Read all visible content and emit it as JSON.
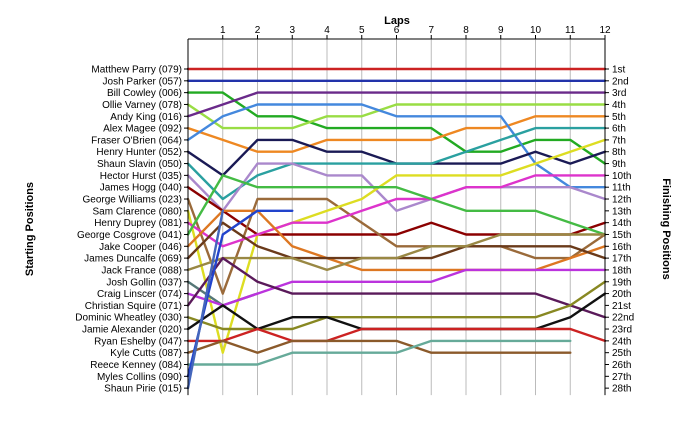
{
  "chart_data": {
    "type": "line",
    "x_title": "Laps",
    "left_title": "Starting Positions",
    "right_title": "Finishing Positions",
    "laps": [
      1,
      2,
      3,
      4,
      5,
      6,
      7,
      8,
      9,
      10,
      11,
      12
    ],
    "start_labels": [
      "Matthew Parry (079)",
      "Josh Parker (057)",
      "Bill Cowley (006)",
      "Ollie Varney (078)",
      "Andy King (016)",
      "Alex Magee (092)",
      "Fraser O'Brien (064)",
      "Henry Hunter (052)",
      "Shaun Slavin (050)",
      "Hector Hurst (035)",
      "James Hogg (040)",
      "George Williams (023)",
      "Sam Clarence (080)",
      "Henry Duprey (081)",
      "George Cosgrove (041)",
      "Jake Cooper (046)",
      "James Duncalfe (069)",
      "Jack France (088)",
      "Josh Gollin (037)",
      "Craig Linscer (074)",
      "Christian Squire (071)",
      "Dominic Wheatley (030)",
      "Jamie Alexander (020)",
      "Ryan Eshelby (047)",
      "Kyle Cutts (087)",
      "Reece Kenney (084)",
      "Myles Collins (090)",
      "Shaun Pirie (015)"
    ],
    "finish_labels": [
      "1st",
      "2nd",
      "3rd",
      "4th",
      "5th",
      "6th",
      "7th",
      "8th",
      "9th",
      "10th",
      "11th",
      "12th",
      "13th",
      "14th",
      "15th",
      "16th",
      "17th",
      "18th",
      "19th",
      "20th",
      "21st",
      "22nd",
      "23rd",
      "24th",
      "25th",
      "26th",
      "27th",
      "28th"
    ],
    "series": [
      {
        "color": "#cc2222",
        "positions": [
          1,
          1,
          1,
          1,
          1,
          1,
          1,
          1,
          1,
          1,
          1,
          1,
          1
        ]
      },
      {
        "color": "#2233aa",
        "positions": [
          2,
          2,
          2,
          2,
          2,
          2,
          2,
          2,
          2,
          2,
          2,
          2,
          2
        ]
      },
      {
        "color": "#22aa22",
        "positions": [
          3,
          3,
          5,
          5,
          6,
          6,
          6,
          6,
          8,
          8,
          7,
          7,
          9
        ]
      },
      {
        "color": "#99dd44",
        "positions": [
          4,
          6,
          6,
          6,
          5,
          5,
          4,
          4,
          4,
          4,
          4,
          4,
          4
        ]
      },
      {
        "color": "#6a2a8a",
        "positions": [
          5,
          4,
          3,
          3,
          3,
          3,
          3,
          3,
          3,
          3,
          3,
          3,
          3
        ]
      },
      {
        "color": "#ee8822",
        "positions": [
          6,
          7,
          8,
          8,
          7,
          7,
          7,
          7,
          6,
          6,
          5,
          5,
          5
        ]
      },
      {
        "color": "#4488dd",
        "positions": [
          7,
          5,
          4,
          4,
          4,
          4,
          5,
          5,
          5,
          5,
          9,
          11,
          11
        ]
      },
      {
        "color": "#1a1a55",
        "positions": [
          8,
          10,
          7,
          7,
          8,
          8,
          9,
          9,
          9,
          9,
          8,
          9,
          8
        ]
      },
      {
        "color": "#2aa0a0",
        "positions": [
          9,
          12,
          10,
          9,
          9,
          9,
          9,
          9,
          8,
          7,
          6,
          6,
          6
        ]
      },
      {
        "color": "#aa88cc",
        "positions": [
          10,
          13,
          9,
          9,
          10,
          10,
          13,
          12,
          11,
          11,
          11,
          11,
          12
        ]
      },
      {
        "color": "#8b0000",
        "positions": [
          11,
          13,
          15,
          15,
          15,
          15,
          15,
          14,
          15,
          15,
          15,
          15,
          14
        ]
      },
      {
        "color": "#9a6a3a",
        "positions": [
          12,
          20,
          12,
          12,
          12,
          14,
          16,
          16,
          16,
          16,
          17,
          17,
          15
        ]
      },
      {
        "color": "#dddd22",
        "positions": [
          13,
          25,
          15,
          14,
          13,
          12,
          10,
          10,
          10,
          10,
          9,
          8,
          7
        ]
      },
      {
        "color": "#dd33cc",
        "positions": [
          14,
          16,
          15,
          14,
          14,
          13,
          12,
          12,
          11,
          11,
          10,
          10,
          10
        ]
      },
      {
        "color": "#44bb44",
        "positions": [
          15,
          10,
          11,
          11,
          11,
          11,
          11,
          12,
          13,
          13,
          13,
          14,
          15
        ]
      },
      {
        "color": "#dd7722",
        "positions": [
          16,
          13,
          13,
          16,
          17,
          18,
          18,
          18,
          18,
          18,
          18,
          17,
          16
        ]
      },
      {
        "color": "#6a3a1a",
        "positions": [
          17,
          14,
          16,
          17,
          17,
          17,
          17,
          17,
          16,
          16,
          16,
          16,
          17
        ]
      },
      {
        "color": "#998844",
        "positions": [
          18,
          17,
          17,
          17,
          18,
          17,
          17,
          16,
          16,
          15,
          15,
          15,
          15
        ]
      },
      {
        "color": "#557777",
        "positions": [
          19,
          21,
          20
        ]
      },
      {
        "color": "#bb33dd",
        "positions": [
          20,
          21,
          20,
          19,
          19,
          19,
          19,
          19,
          18,
          18,
          18,
          18,
          18
        ]
      },
      {
        "color": "#5a1a5a",
        "positions": [
          21,
          17,
          19,
          20,
          20,
          20,
          20,
          20,
          20,
          20,
          20,
          21,
          22
        ]
      },
      {
        "color": "#888822",
        "positions": [
          22,
          23,
          23,
          23,
          22,
          22,
          22,
          22,
          22,
          22,
          22,
          21,
          19
        ]
      },
      {
        "color": "#111111",
        "positions": [
          23,
          21,
          23,
          22,
          22,
          23,
          23,
          23,
          23,
          23,
          23,
          22,
          20
        ]
      },
      {
        "color": "#cc2222",
        "positions": [
          24,
          24,
          23,
          24,
          24,
          23,
          23,
          23,
          23,
          23,
          23,
          23,
          24
        ]
      },
      {
        "color": "#8b5a2b",
        "positions": [
          25,
          24,
          25,
          24,
          24,
          24,
          24,
          25,
          25,
          25,
          25,
          25
        ]
      },
      {
        "color": "#66aa99",
        "positions": [
          26,
          26,
          26,
          25,
          25,
          25,
          25,
          24,
          24,
          24,
          24,
          24
        ]
      },
      {
        "color": "#2244cc",
        "positions": [
          27,
          15,
          13,
          13
        ]
      },
      {
        "color": "#4466bb",
        "positions": [
          28,
          13
        ]
      }
    ]
  }
}
